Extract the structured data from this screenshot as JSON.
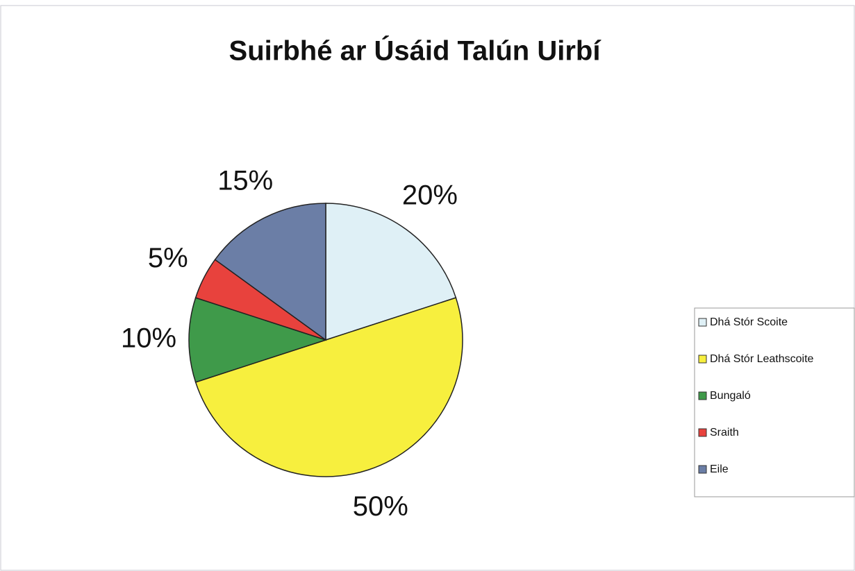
{
  "chart_data": {
    "type": "pie",
    "title": "Suirbhé ar Úsáid Talún Uirbí",
    "categories": [
      "Dhá Stór Scoite",
      "Dhá Stór Leathscoite",
      "Bungaló",
      "Sraith",
      "Eile"
    ],
    "values": [
      20,
      50,
      10,
      5,
      15
    ],
    "value_labels": [
      "20%",
      "50%",
      "10%",
      "5%",
      "15%"
    ],
    "colors": [
      "#dff0f6",
      "#f7ef3e",
      "#3f9a4a",
      "#e8423d",
      "#6b7ea6"
    ],
    "legend": "right"
  }
}
